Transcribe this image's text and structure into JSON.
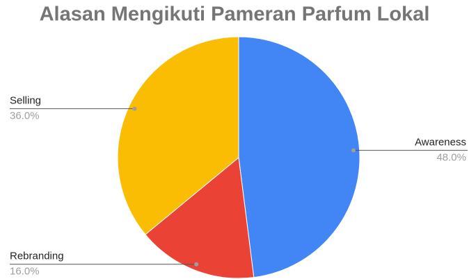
{
  "chart_data": {
    "type": "pie",
    "title": "Alasan Mengikuti Pameran Parfum Lokal",
    "categories": [
      "Awareness",
      "Rebranding",
      "Selling"
    ],
    "values": [
      48,
      16,
      36
    ],
    "value_labels": [
      "48.0%",
      "16.0%",
      "36.0%"
    ],
    "colors": [
      "#4285f4",
      "#ea4335",
      "#fbbc04"
    ]
  }
}
